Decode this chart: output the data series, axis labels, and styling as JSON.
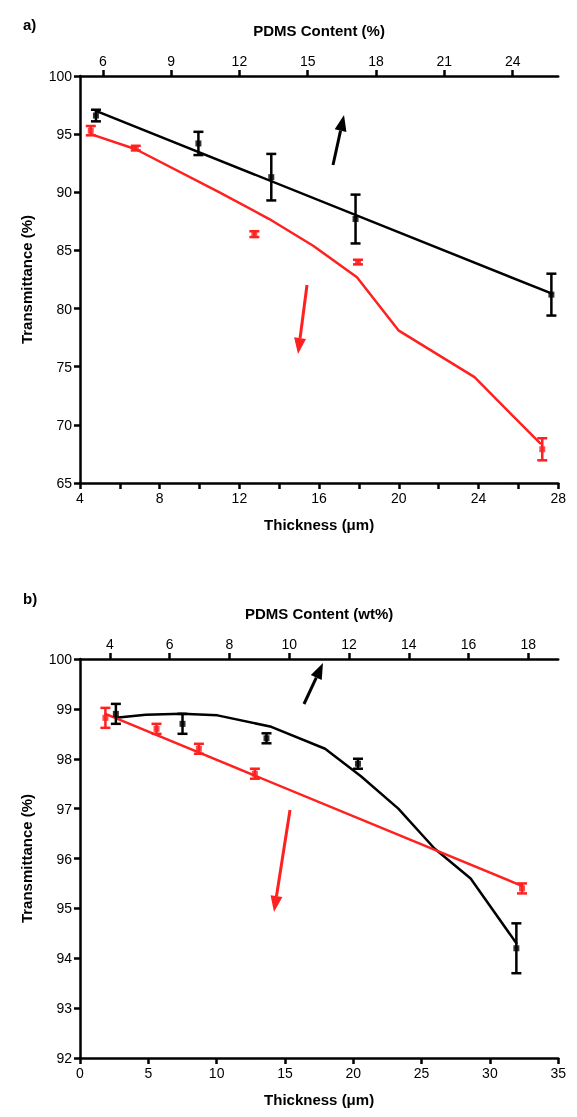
{
  "chart_data": [
    {
      "type": "scatter",
      "title": "a)",
      "xlabel": "Thickness (μm)",
      "x2label": "PDMS Content (%)",
      "ylabel": "Transmittance (%)",
      "marker": "square",
      "grid": false,
      "xlim": [
        4,
        28
      ],
      "xticks": [
        4,
        {
          "value": 6,
          "label": null
        },
        8,
        {
          "value": 10,
          "label": null
        },
        12,
        {
          "value": 14,
          "label": null
        },
        16,
        {
          "value": 18,
          "label": null
        },
        20,
        {
          "value": 22,
          "label": null
        },
        24,
        {
          "value": 26,
          "label": null
        },
        28
      ],
      "x2lim": [
        5,
        26
      ],
      "x2ticks": [
        6,
        9,
        12,
        15,
        18,
        21,
        24
      ],
      "ylim": [
        65,
        100
      ],
      "yticks": [
        65,
        70,
        75,
        80,
        85,
        90,
        95,
        100
      ],
      "series": [
        {
          "color": "#000000",
          "axis": "x2",
          "x": [
            5.7,
            10.2,
            13.4,
            17.1,
            25.7
          ],
          "values": [
            96.6,
            94.2,
            91.3,
            87.7,
            81.2
          ],
          "errors": [
            0.5,
            1.0,
            2.0,
            2.1,
            1.8
          ]
        },
        {
          "type": "line",
          "marker": "none",
          "color": "#000000",
          "axis": "x2",
          "x": [
            5.7,
            25.7
          ],
          "values": [
            97.0,
            81.3
          ]
        },
        {
          "color": "#ff2020",
          "x": [
            4.54,
            6.8,
            12.75,
            17.95,
            27.2
          ],
          "values": [
            95.3,
            93.8,
            86.4,
            84.0,
            67.9
          ],
          "errors": [
            0.4,
            0.2,
            0.25,
            0.2,
            0.95
          ]
        },
        {
          "type": "line",
          "marker": "none",
          "color": "#ff2020",
          "x": [
            4.54,
            6.8,
            11,
            13.5,
            15.7,
            17.9,
            20.0,
            23.8,
            27.1
          ],
          "values": [
            95.0,
            93.7,
            90.0,
            87.7,
            85.4,
            82.7,
            78.1,
            74.1,
            68.4
          ]
        }
      ]
    },
    {
      "type": "scatter",
      "title": "b)",
      "xlabel": "Thickness (μm)",
      "x2label": "PDMS Content (wt%)",
      "ylabel": "Transmittance (%)",
      "marker": "square",
      "grid": false,
      "xlim": [
        0,
        35
      ],
      "xticks": [
        0,
        5,
        10,
        15,
        20,
        25,
        30,
        35
      ],
      "x2lim": [
        3,
        19
      ],
      "x2ticks": [
        4,
        6,
        8,
        10,
        12,
        14,
        16,
        18
      ],
      "ylim": [
        92,
        100
      ],
      "yticks": [
        92,
        93,
        94,
        95,
        96,
        97,
        98,
        99,
        100
      ],
      "series": [
        {
          "color": "#000000",
          "axis": "x2",
          "x": [
            4.2,
            6.43,
            9.24,
            12.3,
            17.6
          ],
          "values": [
            98.9,
            98.7,
            98.41,
            97.9,
            94.2
          ],
          "errors": [
            0.2,
            0.2,
            0.1,
            0.1,
            0.5
          ]
        },
        {
          "type": "line",
          "marker": "none",
          "color": "#000000",
          "axis": "x2",
          "x": [
            4.2,
            5.2,
            6.4,
            7.6,
            9.4,
            11.2,
            12.4,
            13.65,
            14.86,
            16.07,
            17.6
          ],
          "values": [
            98.82,
            98.88,
            98.9,
            98.87,
            98.64,
            98.2,
            97.65,
            97.0,
            96.2,
            95.6,
            94.3
          ]
        },
        {
          "color": "#ff2020",
          "x": [
            1.86,
            5.6,
            8.7,
            12.8,
            32.35
          ],
          "values": [
            98.82,
            98.6,
            98.2,
            97.7,
            95.4
          ],
          "errors": [
            0.2,
            0.1,
            0.1,
            0.1,
            0.1
          ]
        },
        {
          "type": "line",
          "marker": "none",
          "color": "#ff2020",
          "x": [
            1.86,
            32.35
          ],
          "values": [
            98.9,
            95.45
          ]
        }
      ]
    }
  ]
}
